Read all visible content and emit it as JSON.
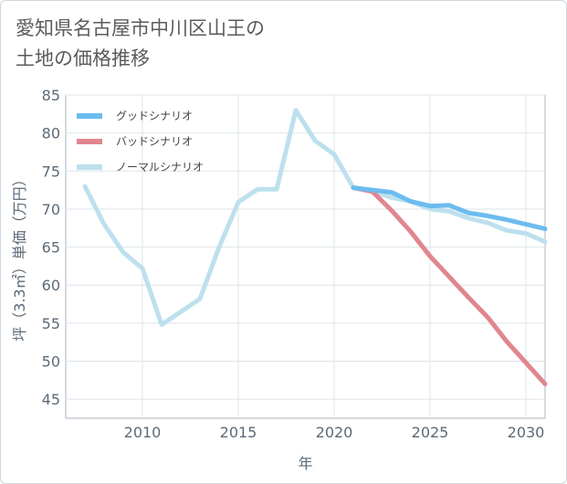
{
  "title": "愛知県名古屋市中川区山王の\n土地の価格推移",
  "chart_data": {
    "type": "line",
    "xlabel": "年",
    "ylabel": "坪（3.3㎡）単価（万円）",
    "xlim": [
      2006,
      2031
    ],
    "ylim": [
      42.5,
      85
    ],
    "xticks": [
      2010,
      2015,
      2020,
      2025,
      2030
    ],
    "yticks": [
      45,
      50,
      55,
      60,
      65,
      70,
      75,
      80,
      85
    ],
    "grid": true,
    "legend_position": "top-left",
    "series": [
      {
        "name": "グッドシナリオ",
        "color": "#6cbcef",
        "x": [
          2021,
          2022,
          2023,
          2024,
          2025,
          2026,
          2027,
          2028,
          2029,
          2030,
          2031
        ],
        "values": [
          72.8,
          72.5,
          72.2,
          71.0,
          70.4,
          70.5,
          69.5,
          69.1,
          68.6,
          68.0,
          67.4
        ]
      },
      {
        "name": "バッドシナリオ",
        "color": "#e0868f",
        "x": [
          2021,
          2022,
          2023,
          2024,
          2025,
          2026,
          2027,
          2028,
          2029,
          2030,
          2031
        ],
        "values": [
          72.8,
          72.3,
          69.8,
          67.0,
          63.8,
          61.1,
          58.4,
          55.8,
          52.6,
          49.8,
          47.0
        ]
      },
      {
        "name": "ノーマルシナリオ",
        "color": "#bde0ee",
        "x": [
          2007,
          2008,
          2009,
          2010,
          2011,
          2012,
          2013,
          2014,
          2015,
          2016,
          2017,
          2018,
          2019,
          2020,
          2021,
          2022,
          2023,
          2024,
          2025,
          2026,
          2027,
          2028,
          2029,
          2030,
          2031
        ],
        "values": [
          73.0,
          68.0,
          64.3,
          62.2,
          54.8,
          56.5,
          58.2,
          65.0,
          70.9,
          72.6,
          72.6,
          83.0,
          79.0,
          77.2,
          72.8,
          72.4,
          71.5,
          71.0,
          70.0,
          69.7,
          68.8,
          68.2,
          67.2,
          66.8,
          65.7
        ]
      }
    ]
  }
}
